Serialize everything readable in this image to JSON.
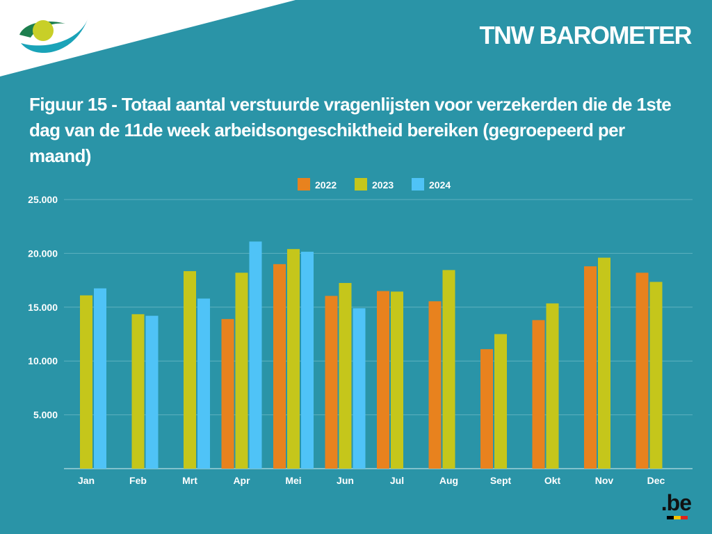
{
  "header": {
    "brand": "TNW BAROMETER",
    "title": "Figuur 15 - Totaal aantal verstuurde vragenlijsten voor verzekerden die de 1ste dag van de 11de week arbeidsongeschiktheid bereiken (gegroepeerd per maand)",
    "logo_icon": "riziv-logo-icon"
  },
  "footer": {
    "be_logo_text": ".be",
    "be_dot_colors": [
      "#000000",
      "#f5c400",
      "#e2231a"
    ]
  },
  "colors": {
    "background": "#2a94a7",
    "corner": "#ffffff",
    "gridline": "#5fb1bf",
    "s2022": "#e8821e",
    "s2023": "#c5c61b",
    "s2024": "#4fc3f7"
  },
  "chart_data": {
    "type": "bar",
    "title": "Figuur 15 - Totaal aantal verstuurde vragenlijsten voor verzekerden die de 1ste dag van de 11de week arbeidsongeschiktheid bereiken (gegroepeerd per maand)",
    "xlabel": "",
    "ylabel": "",
    "ylim": [
      0,
      25000
    ],
    "yticks": [
      0,
      5000,
      10000,
      15000,
      20000,
      25000
    ],
    "ytick_labels": [
      "",
      "5.000",
      "10.000",
      "15.000",
      "20.000",
      "25.000"
    ],
    "grid": true,
    "legend_position": "top-center",
    "categories": [
      "Jan",
      "Feb",
      "Mrt",
      "Apr",
      "Mei",
      "Jun",
      "Jul",
      "Aug",
      "Sept",
      "Okt",
      "Nov",
      "Dec"
    ],
    "series": [
      {
        "name": "2022",
        "color": "#e8821e",
        "values": [
          null,
          null,
          null,
          13900,
          19000,
          16050,
          16500,
          15550,
          11100,
          13800,
          18800,
          18200
        ]
      },
      {
        "name": "2023",
        "color": "#c5c61b",
        "values": [
          16100,
          14350,
          18350,
          18200,
          20400,
          17250,
          16450,
          18450,
          12500,
          15350,
          19600,
          17350
        ]
      },
      {
        "name": "2024",
        "color": "#4fc3f7",
        "values": [
          16750,
          14200,
          15800,
          21100,
          20150,
          14900,
          null,
          null,
          null,
          null,
          null,
          null
        ]
      }
    ]
  }
}
